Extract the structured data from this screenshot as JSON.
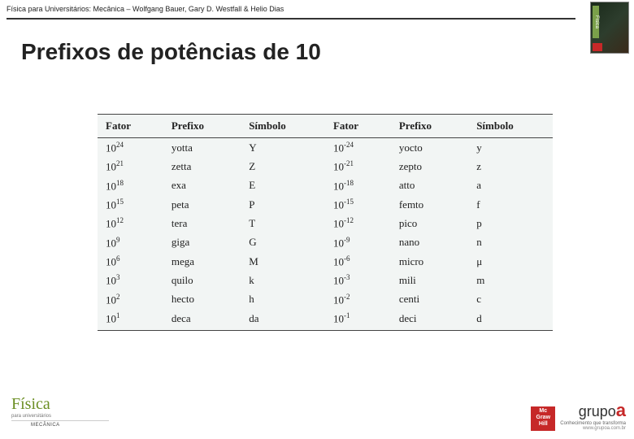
{
  "header": {
    "citation": "Física para Universitários: Mecânica – Wolfgang Bauer, Gary D. Westfall & Helio Dias"
  },
  "title": "Prefixos de potências de 10",
  "table": {
    "headers": [
      "Fator",
      "Prefixo",
      "Símbolo",
      "Fator",
      "Prefixo",
      "Símbolo"
    ],
    "rows": [
      {
        "exp1": "24",
        "p1": "yotta",
        "s1": "Y",
        "exp2": "-24",
        "p2": "yocto",
        "s2": "y"
      },
      {
        "exp1": "21",
        "p1": "zetta",
        "s1": "Z",
        "exp2": "-21",
        "p2": "zepto",
        "s2": "z"
      },
      {
        "exp1": "18",
        "p1": "exa",
        "s1": "E",
        "exp2": "-18",
        "p2": "atto",
        "s2": "a"
      },
      {
        "exp1": "15",
        "p1": "peta",
        "s1": "P",
        "exp2": "-15",
        "p2": "femto",
        "s2": "f"
      },
      {
        "exp1": "12",
        "p1": "tera",
        "s1": "T",
        "exp2": "-12",
        "p2": "pico",
        "s2": "p"
      },
      {
        "exp1": "9",
        "p1": "giga",
        "s1": "G",
        "exp2": "-9",
        "p2": "nano",
        "s2": "n"
      },
      {
        "exp1": "6",
        "p1": "mega",
        "s1": "M",
        "exp2": "-6",
        "p2": "micro",
        "s2": "μ"
      },
      {
        "exp1": "3",
        "p1": "quilo",
        "s1": "k",
        "exp2": "-3",
        "p2": "mili",
        "s2": "m"
      },
      {
        "exp1": "2",
        "p1": "hecto",
        "s1": "h",
        "exp2": "-2",
        "p2": "centi",
        "s2": "c"
      },
      {
        "exp1": "1",
        "p1": "deca",
        "s1": "da",
        "exp2": "-1",
        "p2": "deci",
        "s2": "d"
      }
    ]
  },
  "footer": {
    "left_brand": "Física",
    "left_sub": "para universitários",
    "left_mec": "MECÂNICA",
    "mh": "Mc Graw Hill",
    "grupo": "grupo",
    "a": "a",
    "tagline": "Conhecimento que transforma",
    "url": "www.grupoa.com.br"
  },
  "style": {
    "title_fontsize": 28,
    "table_bg": "#f2f5f4",
    "accent_green": "#6b8e23",
    "accent_red": "#c62828"
  }
}
